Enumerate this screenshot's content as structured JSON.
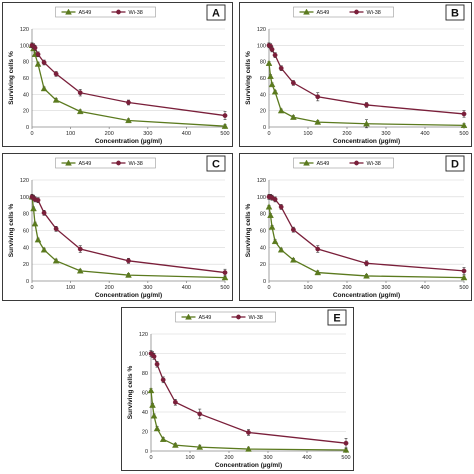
{
  "figure": {
    "colors": {
      "A549": "#5b7a1e",
      "Wi-38": "#7a1f3a",
      "error_bar": "#333333"
    }
  },
  "chart_data": [
    {
      "type": "line",
      "panel_label": "A",
      "xlabel": "Concentration (µg/ml)",
      "ylabel": "Surviving  cells  %",
      "xlim": [
        0,
        500
      ],
      "ylim": [
        0,
        120
      ],
      "xticks": [
        0,
        100,
        200,
        300,
        400,
        500
      ],
      "yticks": [
        0,
        20,
        40,
        60,
        80,
        100,
        120
      ],
      "grid": "horizontal",
      "legend_position": "top",
      "series": [
        {
          "name": "A549",
          "marker": "triangle",
          "x": [
            0,
            3.9,
            7.8,
            15.6,
            31.25,
            62.5,
            125,
            250,
            500
          ],
          "y": [
            100,
            96,
            89,
            77,
            47,
            33,
            19,
            8,
            1
          ],
          "err": [
            2,
            2,
            2,
            2,
            2,
            2,
            2,
            2,
            2
          ]
        },
        {
          "name": "Wi-38",
          "marker": "circle",
          "x": [
            0,
            3.9,
            7.8,
            15.6,
            31.25,
            62.5,
            125,
            250,
            500
          ],
          "y": [
            100,
            99,
            97,
            89,
            79,
            65,
            42,
            30,
            14
          ],
          "err": [
            3,
            3,
            3,
            3,
            3,
            3,
            4,
            3,
            5
          ]
        }
      ]
    },
    {
      "type": "line",
      "panel_label": "B",
      "xlabel": "Concentration (µg/ml)",
      "ylabel": "Surviving  cells  %",
      "xlim": [
        0,
        500
      ],
      "ylim": [
        0,
        120
      ],
      "xticks": [
        0,
        100,
        200,
        300,
        400,
        500
      ],
      "yticks": [
        0,
        20,
        40,
        60,
        80,
        100,
        120
      ],
      "grid": "horizontal",
      "legend_position": "top",
      "series": [
        {
          "name": "A549",
          "marker": "triangle",
          "x": [
            0,
            3.9,
            7.8,
            15.6,
            31.25,
            62.5,
            125,
            250,
            500
          ],
          "y": [
            78,
            62,
            52,
            43,
            20,
            12,
            6,
            4,
            2
          ],
          "err": [
            2,
            2,
            2,
            2,
            2,
            2,
            2,
            5,
            2
          ]
        },
        {
          "name": "Wi-38",
          "marker": "circle",
          "x": [
            0,
            3.9,
            7.8,
            15.6,
            31.25,
            62.5,
            125,
            250,
            500
          ],
          "y": [
            100,
            99,
            95,
            88,
            72,
            54,
            37,
            27,
            16
          ],
          "err": [
            3,
            3,
            3,
            3,
            3,
            3,
            5,
            3,
            4
          ]
        }
      ]
    },
    {
      "type": "line",
      "panel_label": "C",
      "xlabel": "Concentration (µg/ml)",
      "ylabel": "Surviving  cells  %",
      "xlim": [
        0,
        500
      ],
      "ylim": [
        0,
        120
      ],
      "xticks": [
        0,
        100,
        200,
        300,
        400,
        500
      ],
      "yticks": [
        0,
        20,
        40,
        60,
        80,
        100,
        120
      ],
      "grid": "horizontal",
      "legend_position": "top",
      "series": [
        {
          "name": "A549",
          "marker": "triangle",
          "x": [
            0,
            3.9,
            7.8,
            15.6,
            31.25,
            62.5,
            125,
            250,
            500
          ],
          "y": [
            100,
            86,
            68,
            49,
            37,
            24,
            12,
            7,
            4
          ],
          "err": [
            2,
            2,
            2,
            2,
            2,
            2,
            2,
            2,
            2
          ]
        },
        {
          "name": "Wi-38",
          "marker": "circle",
          "x": [
            0,
            3.9,
            7.8,
            15.6,
            31.25,
            62.5,
            125,
            250,
            500
          ],
          "y": [
            100,
            99,
            97,
            96,
            81,
            62,
            38,
            24,
            10
          ],
          "err": [
            3,
            3,
            3,
            3,
            3,
            3,
            4,
            3,
            4
          ]
        }
      ]
    },
    {
      "type": "line",
      "panel_label": "D",
      "xlabel": "Concentration (µg/ml)",
      "ylabel": "Surviving  cells  %",
      "xlim": [
        0,
        500
      ],
      "ylim": [
        0,
        120
      ],
      "xticks": [
        0,
        100,
        200,
        300,
        400,
        500
      ],
      "yticks": [
        0,
        20,
        40,
        60,
        80,
        100,
        120
      ],
      "grid": "horizontal",
      "legend_position": "top",
      "series": [
        {
          "name": "A549",
          "marker": "triangle",
          "x": [
            0,
            3.9,
            7.8,
            15.6,
            31.25,
            62.5,
            125,
            250,
            500
          ],
          "y": [
            88,
            78,
            64,
            47,
            37,
            25,
            10,
            6,
            4
          ],
          "err": [
            2,
            2,
            2,
            2,
            2,
            2,
            2,
            2,
            2
          ]
        },
        {
          "name": "Wi-38",
          "marker": "circle",
          "x": [
            0,
            3.9,
            7.8,
            15.6,
            31.25,
            62.5,
            125,
            250,
            500
          ],
          "y": [
            100,
            100,
            99,
            97,
            88,
            61,
            38,
            21,
            12
          ],
          "err": [
            3,
            3,
            3,
            3,
            3,
            3,
            4,
            3,
            4
          ]
        }
      ]
    },
    {
      "type": "line",
      "panel_label": "E",
      "xlabel": "Concentration (µg/ml)",
      "ylabel": "Surviving  cells  %",
      "xlim": [
        0,
        500
      ],
      "ylim": [
        0,
        120
      ],
      "xticks": [
        0,
        100,
        200,
        300,
        400,
        500
      ],
      "yticks": [
        0,
        20,
        40,
        60,
        80,
        100,
        120
      ],
      "grid": "horizontal",
      "legend_position": "top",
      "series": [
        {
          "name": "A549",
          "marker": "triangle",
          "x": [
            0,
            3.9,
            7.8,
            15.6,
            31.25,
            62.5,
            125,
            250,
            500
          ],
          "y": [
            62,
            47,
            36,
            23,
            12,
            6,
            4,
            2,
            1
          ],
          "err": [
            2,
            2,
            2,
            2,
            2,
            2,
            2,
            2,
            2
          ]
        },
        {
          "name": "Wi-38",
          "marker": "circle",
          "x": [
            0,
            3.9,
            7.8,
            15.6,
            31.25,
            62.5,
            125,
            250,
            500
          ],
          "y": [
            100,
            99,
            97,
            89,
            73,
            50,
            38,
            19,
            8
          ],
          "err": [
            3,
            3,
            3,
            3,
            3,
            3,
            5,
            3,
            5
          ]
        }
      ]
    }
  ]
}
